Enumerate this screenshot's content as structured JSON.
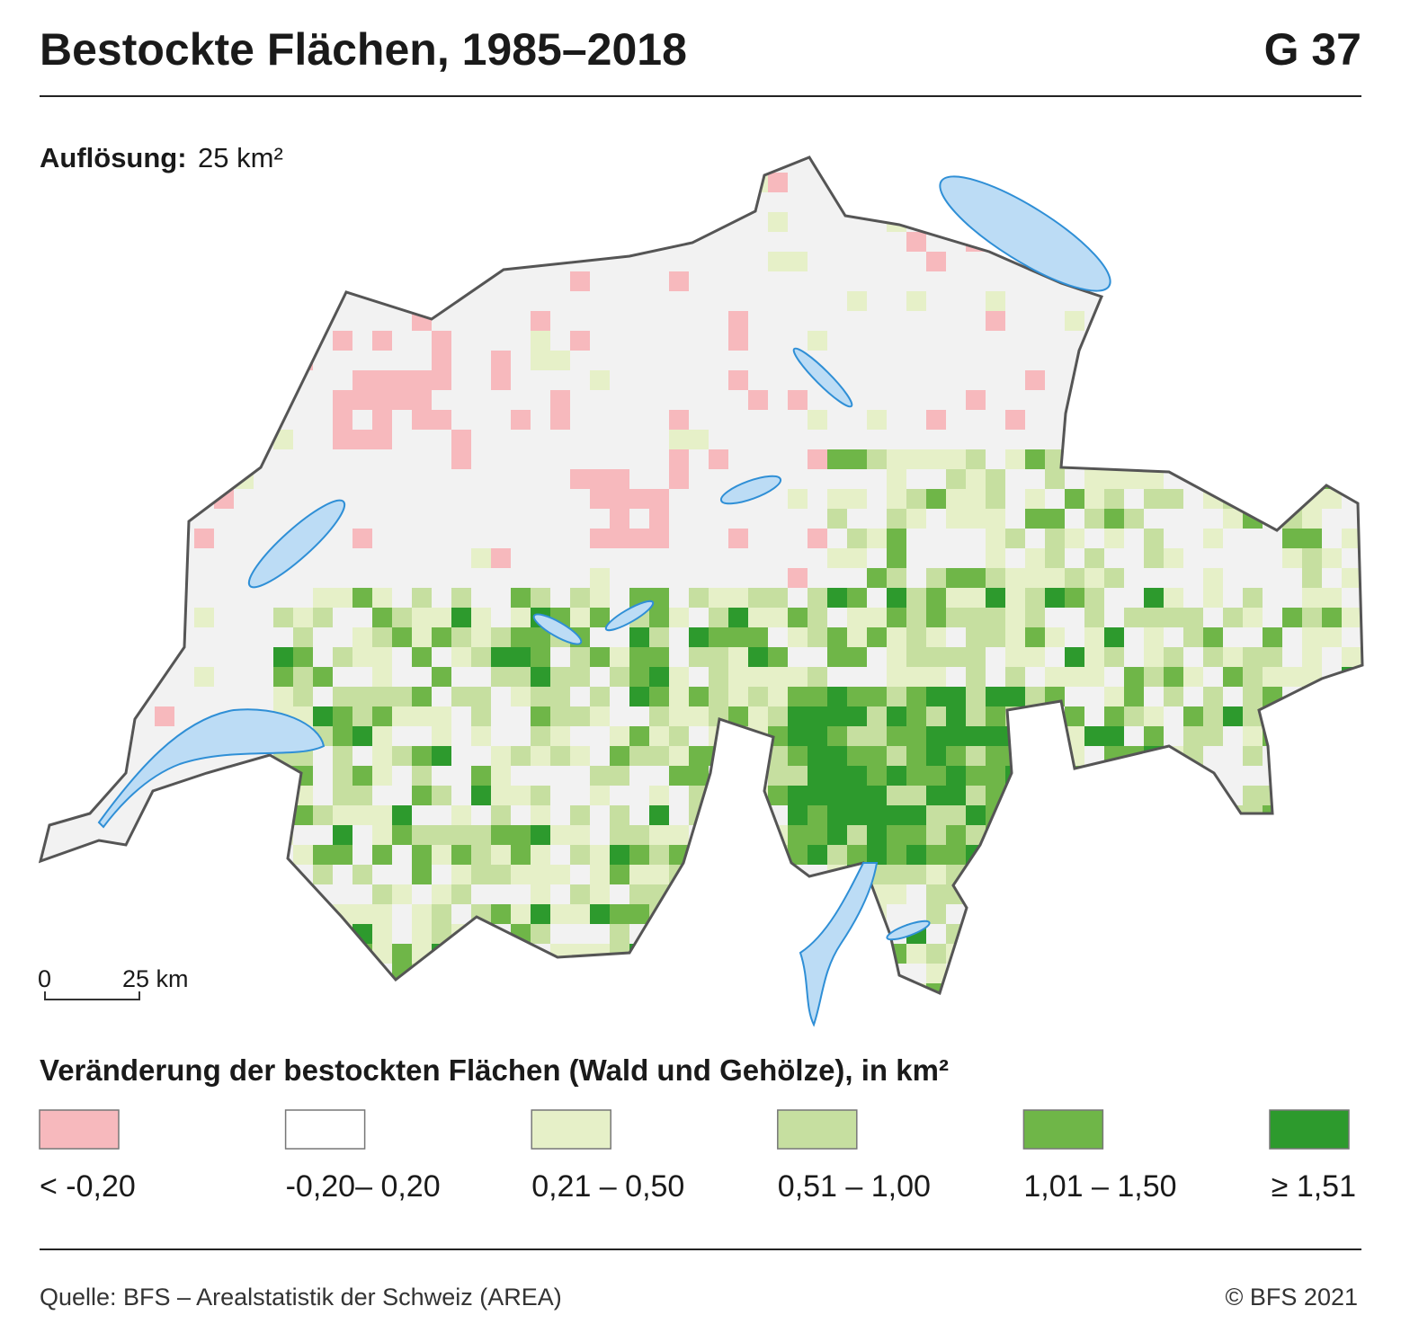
{
  "header": {
    "title": "Bestockte Flächen, 1985–2018",
    "code": "G 37"
  },
  "resolution": {
    "label": "Auflösung:",
    "value": "25 km²"
  },
  "scale": {
    "start": "0",
    "end": "25 km"
  },
  "legend": {
    "title": "Veränderung der bestockten Flächen (Wald und Gehölze), in km²",
    "items": [
      {
        "label": "< -0,20",
        "color": "#f7b9bd"
      },
      {
        "label": "-0,20– 0,20",
        "color": "#ffffff"
      },
      {
        "label": "0,21 – 0,50",
        "color": "#e6f0c8"
      },
      {
        "label": "0,51 – 1,00",
        "color": "#c6dfa0"
      },
      {
        "label": "1,01 – 1,50",
        "color": "#6fb648"
      },
      {
        "label": "≥ 1,51",
        "color": "#2d9a2d"
      }
    ]
  },
  "footer": {
    "source": "Quelle: BFS –  Arealstatistik der Schweiz (AREA)",
    "copyright": "© BFS 2021"
  }
}
